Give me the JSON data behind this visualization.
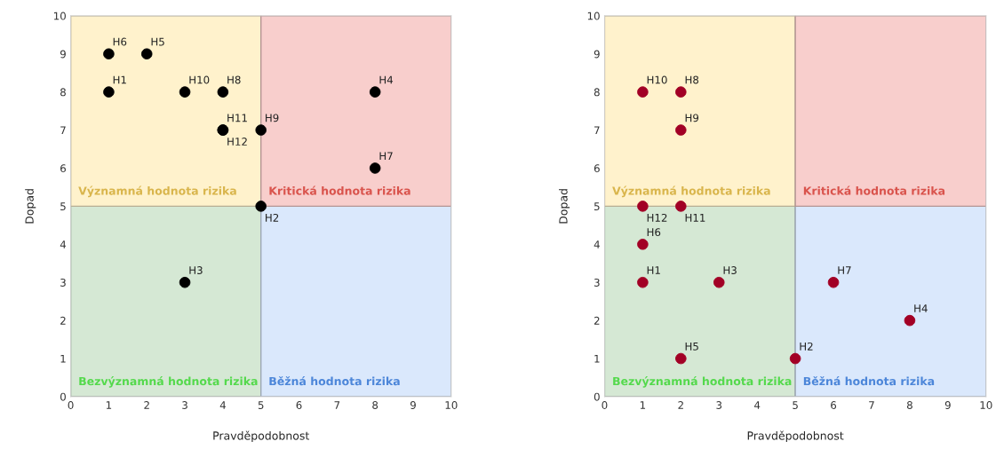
{
  "chart_data": [
    {
      "type": "scatter",
      "xlabel": "Pravděpodobnost",
      "ylabel": "Dopad",
      "xlim": [
        0,
        10
      ],
      "ylim": [
        0,
        10
      ],
      "xticks": [
        0,
        1,
        2,
        3,
        4,
        5,
        6,
        7,
        8,
        9,
        10
      ],
      "yticks": [
        0,
        1,
        2,
        3,
        4,
        5,
        6,
        7,
        8,
        9,
        10
      ],
      "grid": false,
      "marker": "circle",
      "series": [
        {
          "type": "bar",
          "x": [
            2.5,
            7.5
          ],
          "base": [
            0,
            0
          ],
          "values": [
            5,
            5
          ],
          "colors": [
            "#d5e8d4",
            "#dae8fc"
          ]
        },
        {
          "type": "bar",
          "x": [
            2.5,
            7.5
          ],
          "base": [
            5,
            5
          ],
          "values": [
            5,
            5
          ],
          "colors": [
            "#fff2cc",
            "#f8cecc"
          ]
        },
        {
          "color": "#000000",
          "x": [
            1,
            5,
            3,
            8,
            2,
            1,
            8,
            4,
            5,
            3,
            4,
            4
          ],
          "values": [
            8,
            5,
            3,
            8,
            9,
            9,
            6,
            8,
            7,
            8,
            7,
            7
          ]
        }
      ],
      "annotations": [
        {
          "text": "Významná hodnota rizika",
          "x": 2.5,
          "y": 5
        },
        {
          "text": "Kritická hodnota rizika",
          "x": 7.5,
          "y": 5
        },
        {
          "text": "Bezvýznamná hodnota rizika",
          "x": 2.5,
          "y": 0
        },
        {
          "text": "Běžná hodnota rizika",
          "x": 7.5,
          "y": 0
        },
        {
          "text": "H1",
          "x": 1,
          "y": 8
        },
        {
          "text": "H2",
          "x": 5,
          "y": 5
        },
        {
          "text": "H3",
          "x": 3,
          "y": 3
        },
        {
          "text": "H4",
          "x": 8,
          "y": 8
        },
        {
          "text": "H5",
          "x": 2,
          "y": 9
        },
        {
          "text": "H6",
          "x": 1,
          "y": 9
        },
        {
          "text": "H7",
          "x": 8,
          "y": 6
        },
        {
          "text": "H8",
          "x": 4,
          "y": 8
        },
        {
          "text": "H9",
          "x": 5,
          "y": 7
        },
        {
          "text": "H10",
          "x": 3,
          "y": 8
        },
        {
          "text": "H11",
          "x": 4,
          "y": 7
        },
        {
          "text": "H12",
          "x": 4,
          "y": 7
        }
      ]
    },
    {
      "type": "scatter",
      "xlabel": "Pravděpodobnost",
      "ylabel": "Dopad",
      "xlim": [
        0,
        10
      ],
      "ylim": [
        0,
        10
      ],
      "xticks": [
        0,
        1,
        2,
        3,
        4,
        5,
        6,
        7,
        8,
        9,
        10
      ],
      "yticks": [
        0,
        1,
        2,
        3,
        4,
        5,
        6,
        7,
        8,
        9,
        10
      ],
      "grid": false,
      "marker": "circle",
      "series": [
        {
          "type": "bar",
          "x": [
            2.5,
            7.5
          ],
          "base": [
            0,
            0
          ],
          "values": [
            5,
            5
          ],
          "colors": [
            "#d5e8d4",
            "#dae8fc"
          ]
        },
        {
          "type": "bar",
          "x": [
            2.5,
            7.5
          ],
          "base": [
            5,
            5
          ],
          "values": [
            5,
            5
          ],
          "colors": [
            "#fff2cc",
            "#f8cecc"
          ]
        },
        {
          "color": "#a20025",
          "x": [
            1,
            5,
            3,
            8,
            2,
            1,
            6,
            2,
            2,
            1,
            2,
            1
          ],
          "values": [
            3,
            1,
            3,
            2,
            1,
            4,
            3,
            8,
            7,
            8,
            5,
            5
          ]
        }
      ],
      "annotations": [
        {
          "text": "Významná hodnota rizika",
          "x": 2.5,
          "y": 5
        },
        {
          "text": "Kritická hodnota rizika",
          "x": 7.5,
          "y": 5
        },
        {
          "text": "Bezvýznamná hodnota rizika",
          "x": 2.5,
          "y": 0
        },
        {
          "text": "Běžná hodnota rizika",
          "x": 7.5,
          "y": 0
        },
        {
          "text": "H1",
          "x": 1,
          "y": 3
        },
        {
          "text": "H2",
          "x": 5,
          "y": 1
        },
        {
          "text": "H3",
          "x": 3,
          "y": 3
        },
        {
          "text": "H4",
          "x": 8,
          "y": 2
        },
        {
          "text": "H5",
          "x": 2,
          "y": 1
        },
        {
          "text": "H6",
          "x": 1,
          "y": 4
        },
        {
          "text": "H7",
          "x": 6,
          "y": 3
        },
        {
          "text": "H8",
          "x": 2,
          "y": 8
        },
        {
          "text": "H9",
          "x": 2,
          "y": 7
        },
        {
          "text": "H10",
          "x": 1,
          "y": 8
        },
        {
          "text": "H11",
          "x": 2,
          "y": 5
        },
        {
          "text": "H12",
          "x": 1,
          "y": 5
        }
      ]
    }
  ]
}
